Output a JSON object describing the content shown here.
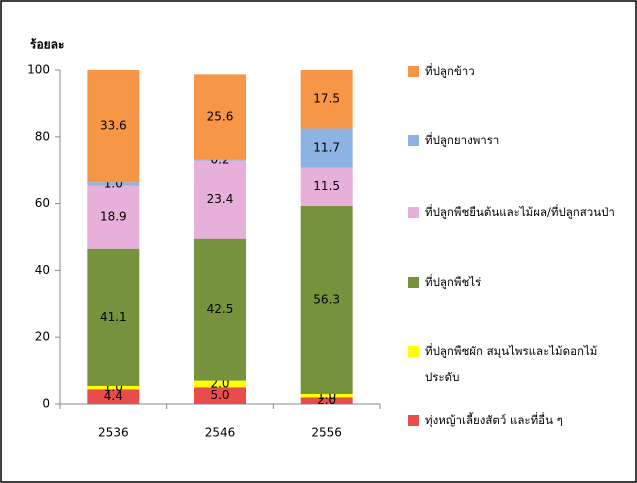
{
  "chart_data": {
    "type": "stacked_bar",
    "ylabel": "ร้อยละ",
    "categories": [
      "2536",
      "2546",
      "2556"
    ],
    "series": [
      {
        "name": "ที่ปลูกข้าว",
        "color": "#f79646",
        "values": [
          33.6,
          25.6,
          17.5
        ],
        "value_labels": [
          "33.6",
          "25.6",
          "17.5"
        ]
      },
      {
        "name": "ที่ปลูกยางพารา",
        "color": "#8db3e2",
        "values": [
          1.0,
          0.2,
          11.7
        ],
        "value_labels": [
          "1.0",
          "0.2",
          "11.7"
        ]
      },
      {
        "name": "ที่ปลูกพืชยืนต้นและไม้ผล/ที่ปลูกสวนป่า",
        "color": "#e6b0da",
        "values": [
          18.9,
          23.4,
          11.5
        ],
        "value_labels": [
          "18.9",
          "23.4",
          "11.5"
        ]
      },
      {
        "name": "ที่ปลูกพืชไร่",
        "color": "#76923c",
        "values": [
          41.1,
          42.5,
          56.3
        ],
        "value_labels": [
          "41.1",
          "42.5",
          "56.3"
        ]
      },
      {
        "name": "ที่ปลูกพืชผัก สมุนไพรและไม้ดอกไม้ประดับ",
        "color": "#ffff00",
        "values": [
          1.0,
          2.0,
          1.0
        ],
        "value_labels": [
          "1.0",
          "2.0",
          "1.0"
        ]
      },
      {
        "name": "ทุ่งหญ้าเลี้ยงสัตว์ และที่อื่น ๆ",
        "color": "#e84c4c",
        "values": [
          4.4,
          5.0,
          2.0
        ],
        "value_labels": [
          "4.4",
          "5.0",
          "2.0"
        ]
      }
    ],
    "ylim": [
      0,
      100
    ],
    "yticks": [
      0,
      20,
      40,
      60,
      80,
      100
    ],
    "grid": false,
    "legend": "right"
  }
}
